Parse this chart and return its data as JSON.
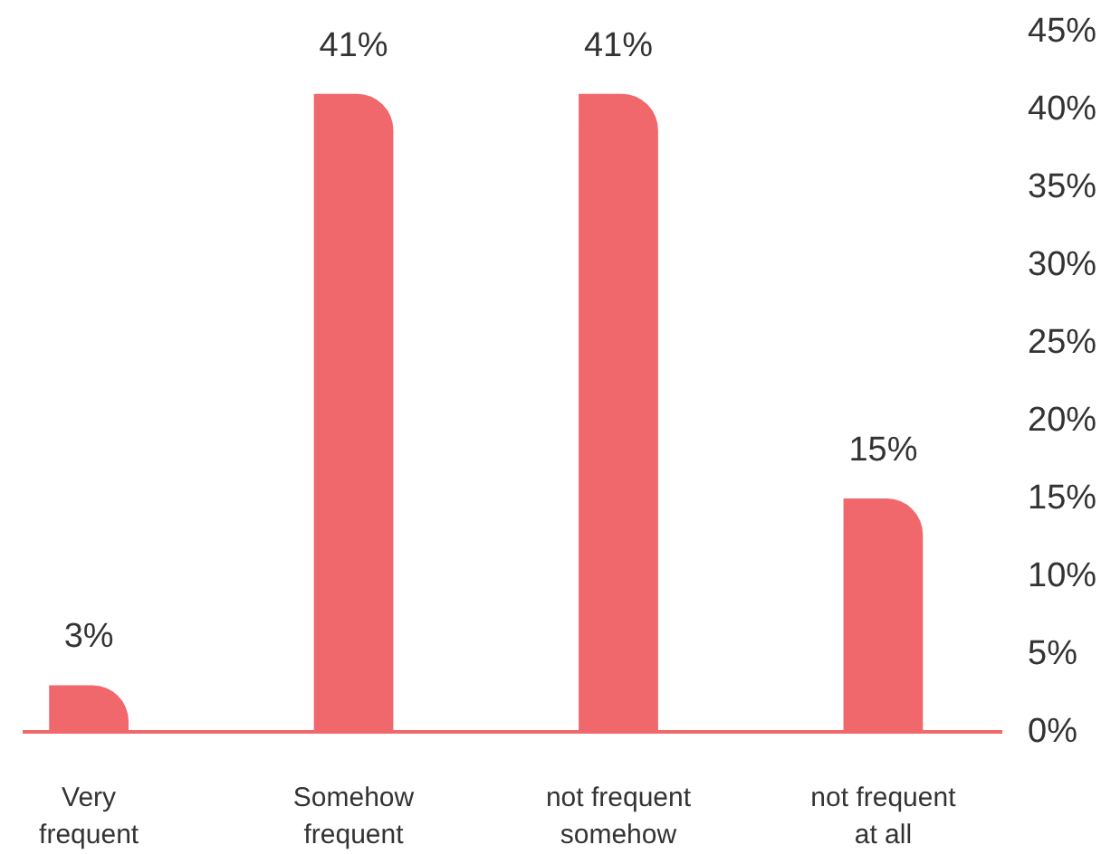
{
  "chart_data": {
    "type": "bar",
    "categories": [
      "Very frequent",
      "Somehow frequent",
      "not frequent somehow",
      "not frequent at all"
    ],
    "values": [
      3,
      41,
      41,
      15
    ],
    "color": "#f0686b",
    "value_labels": [
      "3%",
      "41%",
      "41%",
      "15%"
    ],
    "ylim": [
      0,
      45
    ],
    "yticks": [
      {
        "value": 0,
        "label": "0%"
      },
      {
        "value": 5,
        "label": "5%"
      },
      {
        "value": 10,
        "label": "10%"
      },
      {
        "value": 15,
        "label": "15%"
      },
      {
        "value": 20,
        "label": "20%"
      },
      {
        "value": 25,
        "label": "25%"
      },
      {
        "value": 30,
        "label": "30%"
      },
      {
        "value": 35,
        "label": "35%"
      },
      {
        "value": 40,
        "label": "40%"
      },
      {
        "value": 45,
        "label": "45%"
      }
    ]
  }
}
